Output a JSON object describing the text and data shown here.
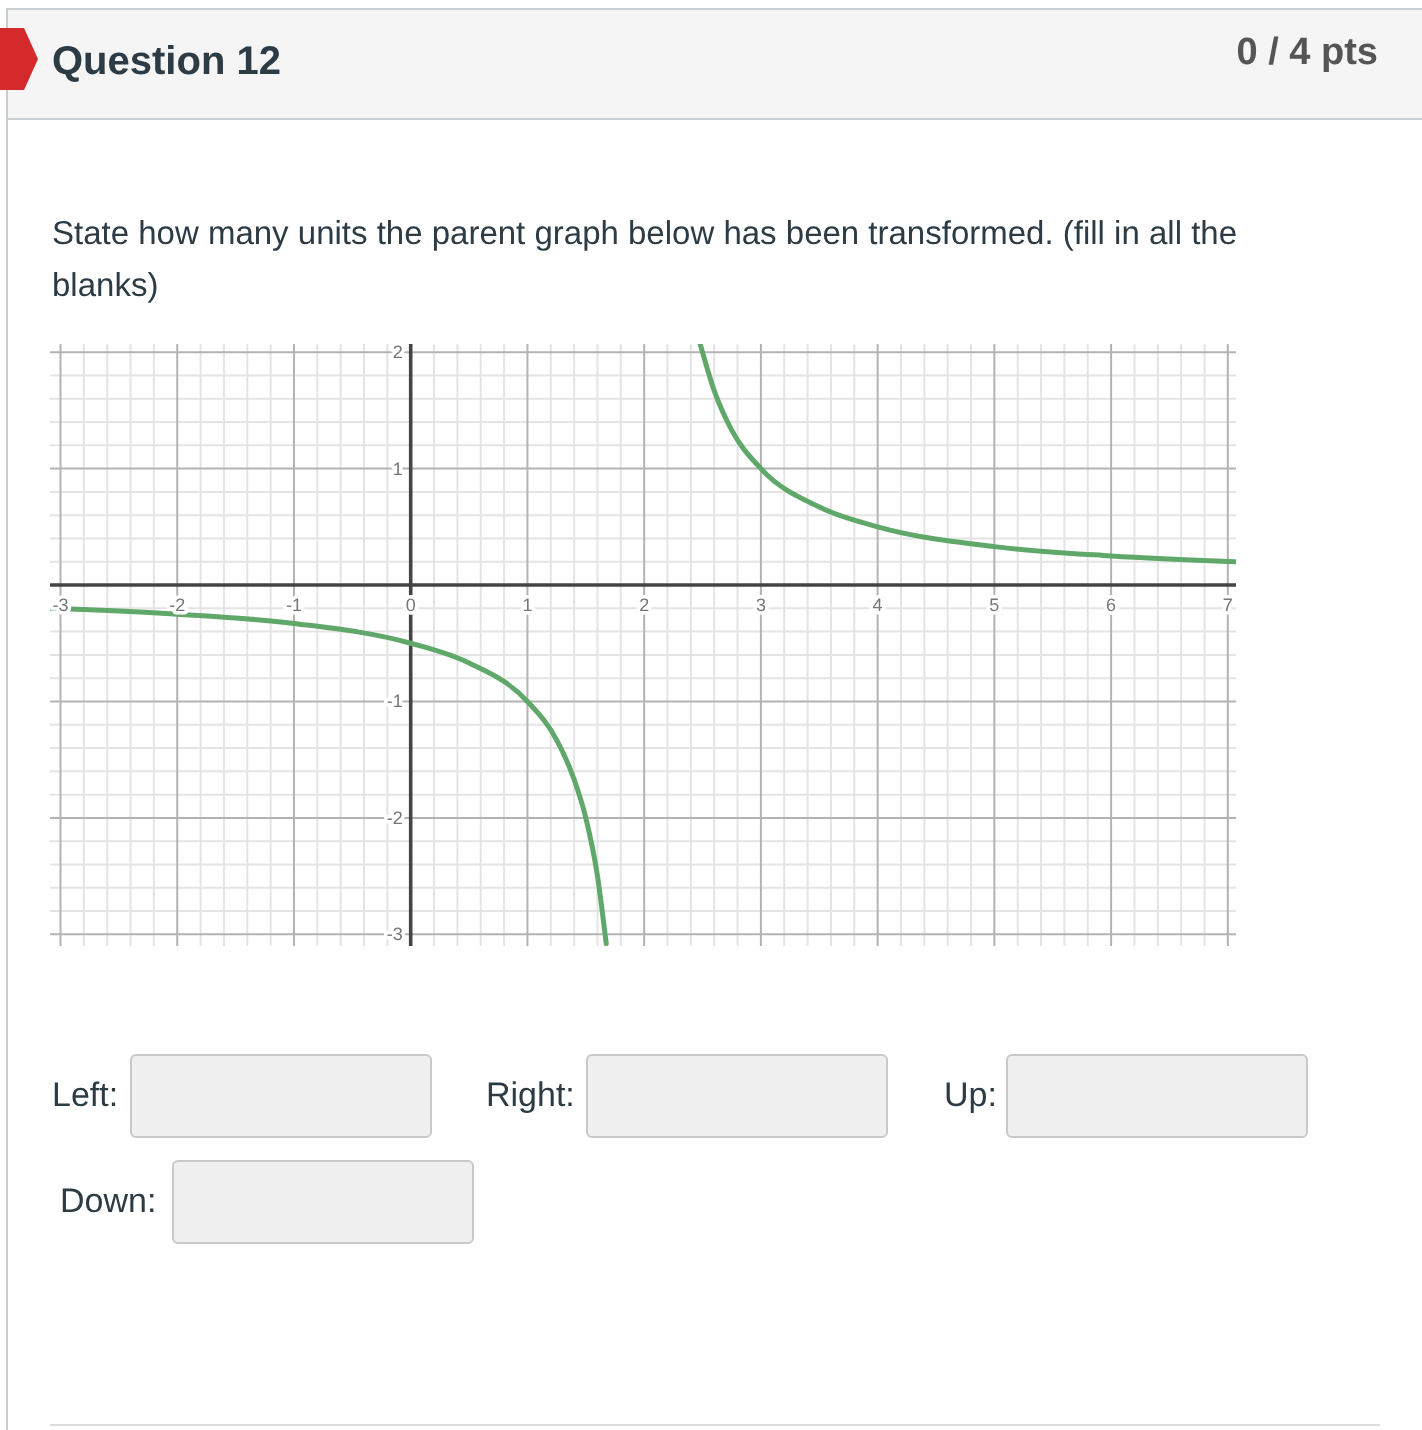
{
  "chart_data": {
    "type": "line",
    "title": "Question 12",
    "subtitle": "State how many units the parent graph below has been transformed. (fill in all the blanks)",
    "annotations": [
      "0 / 4 pts",
      "Left:",
      "Right:",
      "Up:",
      "Down:"
    ],
    "x": [
      -3.09,
      -2,
      -1,
      0,
      0.5,
      1,
      1.25,
      1.4,
      1.5,
      1.6,
      1.675,
      2,
      2.48,
      2.6,
      2.75,
      3,
      3.5,
      4,
      5,
      6,
      7.07
    ],
    "values": [
      -0.2,
      -0.25,
      -0.33,
      -0.5,
      -0.67,
      -1,
      -1.33,
      -1.67,
      -2,
      -2.5,
      -3.08,
      null,
      2.07,
      1.67,
      1.33,
      1,
      0.67,
      0.5,
      0.33,
      0.25,
      0.2
    ],
    "color": "#5fa86a",
    "xlim": [
      -3.09,
      7.07
    ],
    "ylim": [
      -3.1,
      2.07
    ],
    "xticks": [
      -3,
      {
        "value": -2.8,
        "label": null
      },
      {
        "value": -2.6,
        "label": null
      },
      {
        "value": -2.4,
        "label": null
      },
      {
        "value": -2.2,
        "label": null
      },
      -2,
      {
        "value": -1.8,
        "label": null
      },
      {
        "value": -1.6,
        "label": null
      },
      {
        "value": -1.4,
        "label": null
      },
      {
        "value": -1.2,
        "label": null
      },
      -1,
      {
        "value": -0.8,
        "label": null
      },
      {
        "value": -0.6,
        "label": null
      },
      {
        "value": -0.4,
        "label": null
      },
      {
        "value": -0.2,
        "label": null
      },
      0,
      {
        "value": 0.2,
        "label": null
      },
      {
        "value": 0.4,
        "label": null
      },
      {
        "value": 0.6,
        "label": null
      },
      {
        "value": 0.8,
        "label": null
      },
      1,
      {
        "value": 1.2,
        "label": null
      },
      {
        "value": 1.4,
        "label": null
      },
      {
        "value": 1.6,
        "label": null
      },
      {
        "value": 1.8,
        "label": null
      },
      2,
      {
        "value": 2.2,
        "label": null
      },
      {
        "value": 2.4,
        "label": null
      },
      {
        "value": 2.6,
        "label": null
      },
      {
        "value": 2.8,
        "label": null
      },
      3,
      {
        "value": 3.2,
        "label": null
      },
      {
        "value": 3.4,
        "label": null
      },
      {
        "value": 3.6,
        "label": null
      },
      {
        "value": 3.8,
        "label": null
      },
      4,
      {
        "value": 4.2,
        "label": null
      },
      {
        "value": 4.4,
        "label": null
      },
      {
        "value": 4.6,
        "label": null
      },
      {
        "value": 4.8,
        "label": null
      },
      5,
      {
        "value": 5.2,
        "label": null
      },
      {
        "value": 5.4,
        "label": null
      },
      {
        "value": 5.6,
        "label": null
      },
      {
        "value": 5.8,
        "label": null
      },
      6,
      {
        "value": 6.2,
        "label": null
      },
      {
        "value": 6.4,
        "label": null
      },
      {
        "value": 6.6,
        "label": null
      },
      {
        "value": 6.8,
        "label": null
      },
      7
    ],
    "yticks": [
      -3,
      {
        "value": -2.8,
        "label": null
      },
      {
        "value": -2.6,
        "label": null
      },
      {
        "value": -2.4,
        "label": null
      },
      {
        "value": -2.2,
        "label": null
      },
      -2,
      {
        "value": -1.8,
        "label": null
      },
      {
        "value": -1.6,
        "label": null
      },
      {
        "value": -1.4,
        "label": null
      },
      {
        "value": -1.2,
        "label": null
      },
      -1,
      {
        "value": -0.8,
        "label": null
      },
      {
        "value": -0.6,
        "label": null
      },
      {
        "value": -0.4,
        "label": null
      },
      {
        "value": -0.2,
        "label": null
      },
      {
        "value": 0,
        "label": null
      },
      {
        "value": 0.2,
        "label": null
      },
      {
        "value": 0.4,
        "label": null
      },
      {
        "value": 0.6,
        "label": null
      },
      {
        "value": 0.8,
        "label": null
      },
      1,
      {
        "value": 1.2,
        "label": null
      },
      {
        "value": 1.4,
        "label": null
      },
      {
        "value": 1.6,
        "label": null
      },
      {
        "value": 1.8,
        "label": null
      },
      2
    ],
    "grid": true
  }
}
